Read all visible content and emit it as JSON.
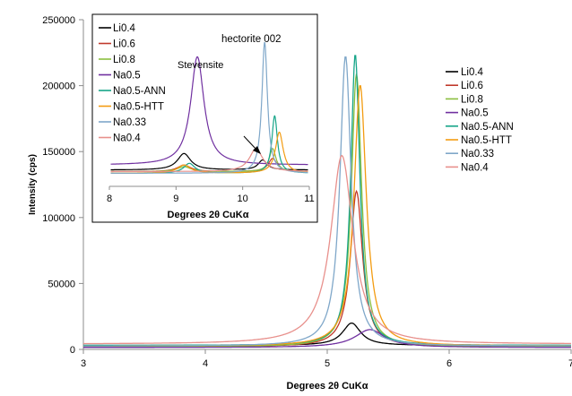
{
  "chart_data": [
    {
      "type": "line",
      "title": "",
      "xlabel": "Degrees 2θ CuKα",
      "ylabel": "Intensity (cps)",
      "xlim": [
        3,
        7
      ],
      "ylim": [
        0,
        250000
      ],
      "x_ticks": [
        "3",
        "4",
        "5",
        "6",
        "7"
      ],
      "y_ticks": [
        "0",
        "50000",
        "100000",
        "150000",
        "200000",
        "250000"
      ],
      "grid": false,
      "legend": "right",
      "series": [
        {
          "name": "Li0.4",
          "color": "#000000",
          "base": 3000,
          "peaks": [
            {
              "center": 5.2,
              "height": 17000,
              "width": 0.09
            }
          ],
          "points": [
            [
              3,
              3000
            ],
            [
              4,
              3500
            ],
            [
              5,
              6200
            ],
            [
              5.1,
              12000
            ],
            [
              5.2,
              20000
            ],
            [
              5.3,
              14000
            ],
            [
              5.5,
              6000
            ],
            [
              6,
              3800
            ],
            [
              7,
              3000
            ]
          ]
        },
        {
          "name": "Li0.6",
          "color": "#c0392b",
          "base": 2000,
          "peaks": [
            {
              "center": 5.24,
              "height": 118000,
              "width": 0.06
            }
          ],
          "points": [
            [
              3,
              2000
            ],
            [
              4,
              2800
            ],
            [
              5,
              9000
            ],
            [
              5.15,
              40000
            ],
            [
              5.24,
              120000
            ],
            [
              5.32,
              50000
            ],
            [
              5.5,
              12000
            ],
            [
              6,
              4000
            ],
            [
              7,
              2000
            ]
          ]
        },
        {
          "name": "Li0.8",
          "color": "#8bbf3f",
          "base": 2000,
          "peaks": [
            {
              "center": 5.24,
              "height": 207000,
              "width": 0.05
            }
          ],
          "points": [
            [
              3,
              2000
            ],
            [
              4,
              2800
            ],
            [
              5,
              12000
            ],
            [
              5.15,
              60000
            ],
            [
              5.24,
              209000
            ],
            [
              5.32,
              80000
            ],
            [
              5.5,
              15000
            ],
            [
              6,
              4500
            ],
            [
              7,
              2000
            ]
          ]
        },
        {
          "name": "Na0.5",
          "color": "#7030a0",
          "base": 1500,
          "peaks": [
            {
              "center": 5.35,
              "height": 13500,
              "width": 0.15
            }
          ],
          "points": [
            [
              3,
              1500
            ],
            [
              4,
              2000
            ],
            [
              5,
              5000
            ],
            [
              5.2,
              11000
            ],
            [
              5.35,
              15000
            ],
            [
              5.5,
              10000
            ],
            [
              5.8,
              4000
            ],
            [
              6.5,
              2000
            ],
            [
              7,
              1500
            ]
          ]
        },
        {
          "name": "Na0.5-ANN",
          "color": "#17a589",
          "base": 3000,
          "peaks": [
            {
              "center": 5.23,
              "height": 221000,
              "width": 0.045
            }
          ],
          "points": [
            [
              3,
              3000
            ],
            [
              4,
              4000
            ],
            [
              5,
              15000
            ],
            [
              5.15,
              80000
            ],
            [
              5.23,
              224000
            ],
            [
              5.3,
              100000
            ],
            [
              5.5,
              18000
            ],
            [
              6,
              6000
            ],
            [
              7,
              3000
            ]
          ]
        },
        {
          "name": "Na0.5-HTT",
          "color": "#f39c12",
          "base": 2500,
          "peaks": [
            {
              "center": 5.27,
              "height": 198000,
              "width": 0.06
            }
          ],
          "points": [
            [
              3,
              2500
            ],
            [
              4,
              3500
            ],
            [
              5,
              12000
            ],
            [
              5.18,
              60000
            ],
            [
              5.27,
              201000
            ],
            [
              5.36,
              90000
            ],
            [
              5.6,
              18000
            ],
            [
              6,
              7000
            ],
            [
              7,
              2500
            ]
          ]
        },
        {
          "name": "Na0.33",
          "color": "#7fa7c9",
          "base": 2500,
          "peaks": [
            {
              "center": 5.15,
              "height": 220000,
              "width": 0.055
            }
          ],
          "points": [
            [
              3,
              2500
            ],
            [
              4,
              3500
            ],
            [
              4.9,
              20000
            ],
            [
              5.05,
              90000
            ],
            [
              5.15,
              223000
            ],
            [
              5.25,
              80000
            ],
            [
              5.5,
              12000
            ],
            [
              6,
              5000
            ],
            [
              7,
              2500
            ]
          ]
        },
        {
          "name": "Na0.4",
          "color": "#e8908c",
          "base": 4000,
          "peaks": [
            {
              "center": 5.12,
              "height": 143000,
              "width": 0.11
            }
          ],
          "points": [
            [
              3,
              4000
            ],
            [
              4,
              7500
            ],
            [
              4.6,
              20000
            ],
            [
              4.9,
              60000
            ],
            [
              5.12,
              148000
            ],
            [
              5.3,
              60000
            ],
            [
              5.6,
              15000
            ],
            [
              6,
              8000
            ],
            [
              7,
              4000
            ]
          ]
        }
      ]
    },
    {
      "type": "line",
      "title": "",
      "xlabel": "Degrees 2θ CuKα",
      "ylabel": "",
      "xlim": [
        8,
        11
      ],
      "x_ticks": [
        "8",
        "9",
        "10",
        "11"
      ],
      "grid": false,
      "legend": "top-left",
      "annotations": [
        "Stevensite",
        "hectorite 002"
      ],
      "series": [
        {
          "name": "Li0.4",
          "color": "#000000",
          "base": 10,
          "peaks": [
            {
              "center": 9.12,
              "height": 10,
              "width": 0.12
            },
            {
              "center": 10.3,
              "height": 6,
              "width": 0.08
            }
          ]
        },
        {
          "name": "Li0.6",
          "color": "#c0392b",
          "base": 9,
          "peaks": [
            {
              "center": 9.12,
              "height": 4,
              "width": 0.12
            },
            {
              "center": 10.45,
              "height": 8,
              "width": 0.08
            }
          ]
        },
        {
          "name": "Li0.8",
          "color": "#8bbf3f",
          "base": 9,
          "peaks": [
            {
              "center": 9.12,
              "height": 3,
              "width": 0.12
            },
            {
              "center": 10.45,
              "height": 14,
              "width": 0.06
            }
          ]
        },
        {
          "name": "Na0.5",
          "color": "#7030a0",
          "base": 13,
          "peaks": [
            {
              "center": 9.32,
              "height": 66,
              "width": 0.12
            }
          ]
        },
        {
          "name": "Na0.5-ANN",
          "color": "#17a589",
          "base": 8,
          "peaks": [
            {
              "center": 9.2,
              "height": 6,
              "width": 0.1
            },
            {
              "center": 10.48,
              "height": 35,
              "width": 0.05
            }
          ]
        },
        {
          "name": "Na0.5-HTT",
          "color": "#f39c12",
          "base": 8,
          "peaks": [
            {
              "center": 9.12,
              "height": 5,
              "width": 0.12
            },
            {
              "center": 10.55,
              "height": 25,
              "width": 0.07
            }
          ]
        },
        {
          "name": "Na0.33",
          "color": "#7fa7c9",
          "base": 8,
          "peaks": [
            {
              "center": 10.33,
              "height": 80,
              "width": 0.05
            }
          ]
        },
        {
          "name": "Na0.4",
          "color": "#e8908c",
          "base": 9,
          "peaks": [
            {
              "center": 10.2,
              "height": 14,
              "width": 0.12
            }
          ]
        }
      ]
    }
  ]
}
